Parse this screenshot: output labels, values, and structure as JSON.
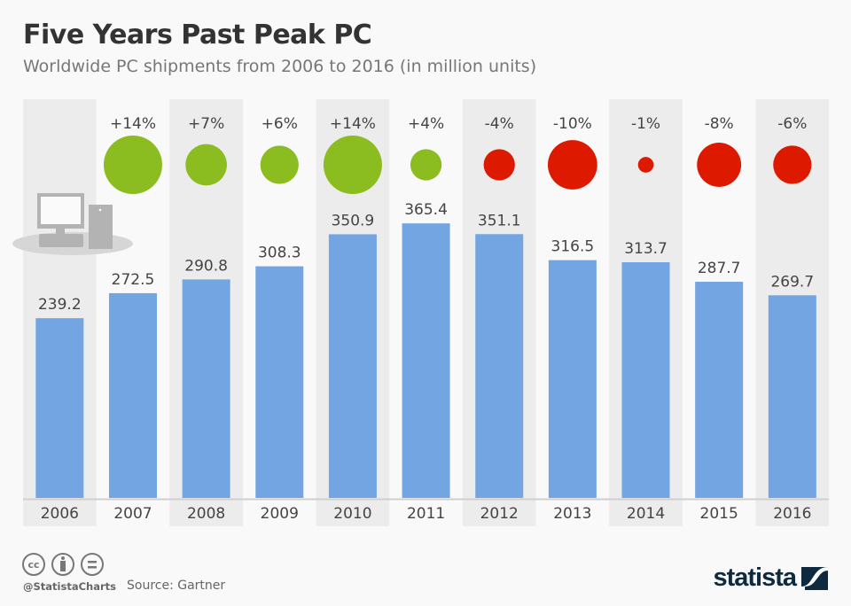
{
  "title": "Five Years Past Peak PC",
  "subtitle": "Worldwide PC shipments from 2006 to 2016 (in million units)",
  "footer": {
    "handle": "@StatistaCharts",
    "source": "Source: Gartner",
    "logo": "statista",
    "license_icons": [
      "cc-icon",
      "attribution-icon",
      "no-derivatives-icon"
    ]
  },
  "colors": {
    "bar": "#72a5e2",
    "positive": "#8bbd20",
    "negative": "#dd1a00",
    "band": "#ececec",
    "text": "#444444"
  },
  "chart_data": {
    "type": "bar",
    "categories": [
      "2006",
      "2007",
      "2008",
      "2009",
      "2010",
      "2011",
      "2012",
      "2013",
      "2014",
      "2015",
      "2016"
    ],
    "values": [
      239.2,
      272.5,
      290.8,
      308.3,
      350.9,
      365.4,
      351.1,
      316.5,
      313.7,
      287.7,
      269.7
    ],
    "value_labels": [
      "239.2",
      "272.5",
      "290.8",
      "308.3",
      "350.9",
      "365.4",
      "351.1",
      "316.5",
      "313.7",
      "287.7",
      "269.7"
    ],
    "yoy_change_pct": [
      null,
      14,
      7,
      6,
      14,
      4,
      -4,
      -10,
      -1,
      -8,
      -6
    ],
    "yoy_labels": [
      "",
      "+14%",
      "+7%",
      "+6%",
      "+14%",
      "+4%",
      "-4%",
      "-10%",
      "-1%",
      "-8%",
      "-6%"
    ],
    "ylim": [
      0,
      420
    ],
    "grid": false,
    "legend": "none"
  }
}
